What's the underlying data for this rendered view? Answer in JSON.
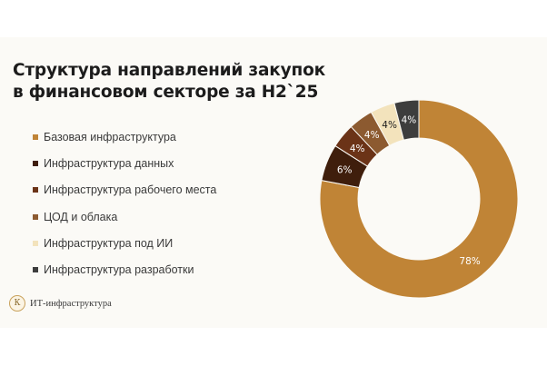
{
  "chart_data": {
    "type": "pie",
    "title": "Структура направлений закупок в финансовом секторе за H2`25",
    "title_lines": [
      "Структура направлений закупок",
      "в финансовом секторе за H2`25"
    ],
    "legend_position": "left",
    "categories": [
      "Базовая инфраструктура",
      "Инфраструктура данных",
      "Инфраструктура рабочего места",
      "ЦОД и облака",
      "Инфраструктура под ИИ",
      "Инфраструктура разработки"
    ],
    "values": [
      78,
      6,
      4,
      4,
      4,
      4
    ],
    "labels": [
      "78%",
      "6%",
      "4%",
      "4%",
      "4%",
      "4%"
    ],
    "colors": [
      "#c08436",
      "#3f1e0c",
      "#6b3317",
      "#8c5a30",
      "#f3e3bc",
      "#3d3d3d"
    ]
  },
  "footer": {
    "logo_letter": "К",
    "text": "ИТ-инфраструктура"
  }
}
